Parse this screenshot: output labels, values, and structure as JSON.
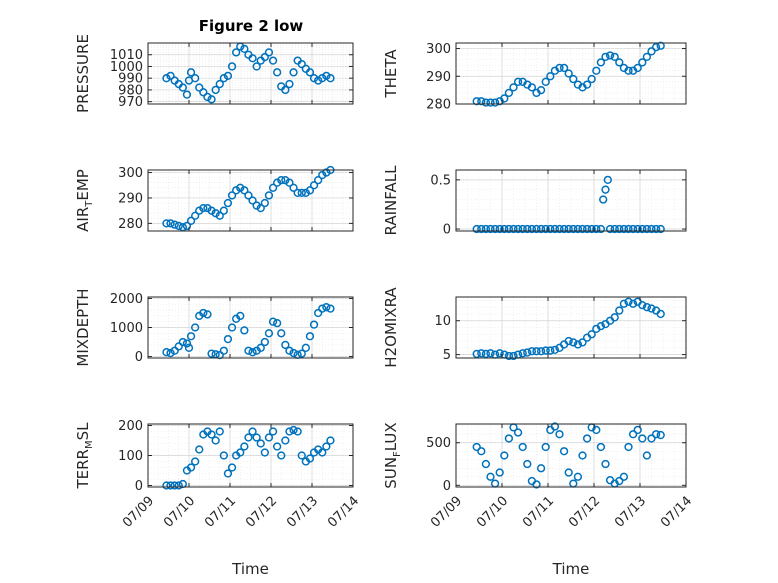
{
  "figure_title": "Figure 2 low",
  "marker_color": "#0072bd",
  "chart_data": [
    {
      "type": "scatter",
      "panel": "PRESSURE",
      "ylabel": "PRESSURE",
      "ylabel_sub": "",
      "ylabel_post": "",
      "ylim": [
        968,
        1020
      ],
      "yticks": [
        970,
        980,
        990,
        1000,
        1010
      ],
      "ytick_labels": [
        "970",
        "980",
        "990",
        "1000",
        "1010"
      ],
      "xlabel": "",
      "xtick_labels": [],
      "x": [
        0.45,
        0.55,
        0.65,
        0.75,
        0.85,
        0.95,
        1.0,
        1.05,
        1.15,
        1.25,
        1.35,
        1.45,
        1.55,
        1.65,
        1.75,
        1.85,
        1.95,
        2.05,
        2.15,
        2.25,
        2.35,
        2.45,
        2.55,
        2.65,
        2.75,
        2.85,
        2.95,
        3.05,
        3.15,
        3.25,
        3.35,
        3.45,
        3.55,
        3.65,
        3.75,
        3.85,
        3.95,
        4.05,
        4.15,
        4.25,
        4.35,
        4.45
      ],
      "y": [
        990,
        992,
        988,
        985,
        982,
        976,
        988,
        995,
        990,
        982,
        978,
        974,
        972,
        980,
        985,
        990,
        992,
        1000,
        1012,
        1017,
        1015,
        1010,
        1007,
        1000,
        1005,
        1008,
        1012,
        1005,
        995,
        983,
        980,
        985,
        995,
        1005,
        1002,
        998,
        995,
        990,
        988,
        990,
        992,
        990
      ]
    },
    {
      "type": "scatter",
      "panel": "THETA",
      "ylabel": "THETA",
      "ylabel_sub": "",
      "ylabel_post": "",
      "ylim": [
        280,
        302
      ],
      "yticks": [
        280,
        290,
        300
      ],
      "ytick_labels": [
        "280",
        "290",
        "300"
      ],
      "xlabel": "",
      "xtick_labels": [],
      "x": [
        0.45,
        0.55,
        0.65,
        0.75,
        0.85,
        0.95,
        1.05,
        1.15,
        1.25,
        1.35,
        1.45,
        1.55,
        1.65,
        1.75,
        1.85,
        1.95,
        2.05,
        2.15,
        2.25,
        2.35,
        2.45,
        2.55,
        2.65,
        2.75,
        2.85,
        2.95,
        3.05,
        3.15,
        3.25,
        3.35,
        3.45,
        3.55,
        3.65,
        3.75,
        3.85,
        3.95,
        4.05,
        4.15,
        4.25,
        4.35,
        4.45
      ],
      "y": [
        281,
        281,
        280.5,
        280.5,
        280.5,
        281,
        282,
        284,
        286,
        288,
        288,
        287,
        286,
        284,
        285,
        288,
        290,
        292,
        293,
        293,
        291,
        289,
        287,
        286,
        287,
        289,
        292,
        295,
        297,
        297.5,
        297,
        295,
        293,
        292,
        292,
        293,
        295,
        297,
        299,
        300.5,
        301
      ]
    },
    {
      "type": "scatter",
      "panel": "AIR_T_EMP",
      "ylabel": "AIR",
      "ylabel_sub": "T",
      "ylabel_post": "EMP",
      "ylim": [
        277,
        301
      ],
      "yticks": [
        280,
        290,
        300
      ],
      "ytick_labels": [
        "280",
        "290",
        "300"
      ],
      "xlabel": "",
      "xtick_labels": [],
      "x": [
        0.45,
        0.55,
        0.65,
        0.75,
        0.85,
        0.95,
        1.05,
        1.15,
        1.25,
        1.35,
        1.45,
        1.55,
        1.65,
        1.75,
        1.85,
        1.95,
        2.05,
        2.15,
        2.25,
        2.35,
        2.45,
        2.55,
        2.65,
        2.75,
        2.85,
        2.95,
        3.05,
        3.15,
        3.25,
        3.35,
        3.45,
        3.55,
        3.65,
        3.75,
        3.85,
        3.95,
        4.05,
        4.15,
        4.25,
        4.35,
        4.45
      ],
      "y": [
        280,
        280,
        279.5,
        279,
        278.5,
        279,
        281,
        283,
        285,
        286,
        286,
        285,
        284,
        283,
        285,
        288,
        291,
        293,
        294,
        293,
        291,
        289,
        287,
        286,
        288,
        291,
        294,
        296,
        297,
        297,
        296,
        294,
        292,
        292,
        292,
        293,
        295,
        297,
        299,
        300,
        301
      ]
    },
    {
      "type": "scatter",
      "panel": "RAINFALL",
      "ylabel": "RAINFALL",
      "ylabel_sub": "",
      "ylabel_post": "",
      "ylim": [
        -0.02,
        0.6
      ],
      "yticks": [
        0,
        0.5
      ],
      "ytick_labels": [
        "0",
        "0.5"
      ],
      "xlabel": "",
      "xtick_labels": [],
      "x": [
        0.45,
        0.55,
        0.65,
        0.75,
        0.85,
        0.95,
        1.05,
        1.15,
        1.25,
        1.35,
        1.45,
        1.55,
        1.65,
        1.75,
        1.85,
        1.95,
        2.05,
        2.15,
        2.25,
        2.35,
        2.45,
        2.55,
        2.65,
        2.75,
        2.85,
        2.95,
        3.05,
        3.15,
        3.2,
        3.25,
        3.3,
        3.35,
        3.45,
        3.55,
        3.65,
        3.75,
        3.85,
        3.95,
        4.05,
        4.15,
        4.25,
        4.35,
        4.45
      ],
      "y": [
        0,
        0,
        0,
        0,
        0,
        0,
        0,
        0,
        0,
        0,
        0,
        0,
        0,
        0,
        0,
        0,
        0,
        0,
        0,
        0,
        0,
        0,
        0,
        0,
        0,
        0,
        0,
        0,
        0.3,
        0.4,
        0.5,
        0,
        0,
        0,
        0,
        0,
        0,
        0,
        0,
        0,
        0,
        0,
        0
      ]
    },
    {
      "type": "scatter",
      "panel": "MIXDEPTH",
      "ylabel": "MIXDEPTH",
      "ylabel_sub": "",
      "ylabel_post": "",
      "ylim": [
        -50,
        2050
      ],
      "yticks": [
        0,
        1000,
        2000
      ],
      "ytick_labels": [
        "0",
        "1000",
        "2000"
      ],
      "xlabel": "",
      "xtick_labels": [],
      "x": [
        0.45,
        0.55,
        0.65,
        0.75,
        0.85,
        0.95,
        1.0,
        1.05,
        1.15,
        1.25,
        1.35,
        1.45,
        1.55,
        1.65,
        1.75,
        1.85,
        1.95,
        2.05,
        2.15,
        2.25,
        2.35,
        2.45,
        2.55,
        2.65,
        2.75,
        2.85,
        2.95,
        3.05,
        3.15,
        3.25,
        3.35,
        3.45,
        3.55,
        3.65,
        3.75,
        3.85,
        3.95,
        4.05,
        4.15,
        4.25,
        4.35,
        4.45
      ],
      "y": [
        150,
        120,
        200,
        350,
        500,
        450,
        300,
        700,
        1000,
        1400,
        1500,
        1450,
        100,
        80,
        50,
        200,
        600,
        1000,
        1300,
        1400,
        900,
        200,
        150,
        200,
        300,
        500,
        800,
        1200,
        1150,
        800,
        400,
        200,
        120,
        60,
        100,
        300,
        700,
        1100,
        1500,
        1650,
        1700,
        1650
      ]
    },
    {
      "type": "scatter",
      "panel": "H2OMIXRA",
      "ylabel": "H2OMIXRA",
      "ylabel_sub": "",
      "ylabel_post": "",
      "ylim": [
        4.5,
        13.5
      ],
      "yticks": [
        5,
        10
      ],
      "ytick_labels": [
        "5",
        "10"
      ],
      "xlabel": "",
      "xtick_labels": [],
      "x": [
        0.45,
        0.55,
        0.65,
        0.75,
        0.85,
        0.95,
        1.05,
        1.15,
        1.25,
        1.35,
        1.45,
        1.55,
        1.65,
        1.75,
        1.85,
        1.95,
        2.05,
        2.15,
        2.25,
        2.35,
        2.45,
        2.55,
        2.65,
        2.75,
        2.85,
        2.95,
        3.05,
        3.15,
        3.25,
        3.35,
        3.45,
        3.55,
        3.65,
        3.75,
        3.85,
        3.95,
        4.05,
        4.15,
        4.25,
        4.35,
        4.45
      ],
      "y": [
        5.1,
        5.2,
        5.1,
        5.2,
        5.0,
        5.2,
        5.0,
        4.8,
        4.8,
        5.0,
        5.2,
        5.3,
        5.5,
        5.5,
        5.5,
        5.6,
        5.6,
        5.7,
        6.0,
        6.5,
        7.0,
        6.8,
        6.5,
        6.8,
        7.5,
        8.0,
        8.8,
        9.2,
        9.5,
        10.0,
        10.5,
        11.5,
        12.5,
        12.8,
        12.5,
        12.8,
        12.3,
        12.0,
        11.8,
        11.5,
        11.0
      ]
    },
    {
      "type": "scatter",
      "panel": "TERR_M_SL",
      "ylabel": "TERR",
      "ylabel_sub": "M",
      "ylabel_post": "SL",
      "ylim": [
        -5,
        205
      ],
      "yticks": [
        0,
        100,
        200
      ],
      "ytick_labels": [
        "0",
        "100",
        "200"
      ],
      "xlabel": "Time",
      "xtick_labels": [
        "07/09",
        "07/10",
        "07/11",
        "07/12",
        "07/13",
        "07/14"
      ],
      "x": [
        0.45,
        0.55,
        0.65,
        0.75,
        0.85,
        0.95,
        1.05,
        1.15,
        1.25,
        1.35,
        1.45,
        1.55,
        1.65,
        1.75,
        1.85,
        1.95,
        2.05,
        2.15,
        2.25,
        2.35,
        2.45,
        2.55,
        2.65,
        2.75,
        2.85,
        2.95,
        3.05,
        3.15,
        3.25,
        3.35,
        3.45,
        3.55,
        3.65,
        3.75,
        3.85,
        3.95,
        4.05,
        4.15,
        4.25,
        4.35,
        4.45
      ],
      "y": [
        0,
        0,
        0,
        0,
        5,
        50,
        60,
        80,
        120,
        170,
        180,
        170,
        150,
        180,
        100,
        40,
        60,
        100,
        110,
        130,
        160,
        180,
        160,
        140,
        110,
        160,
        180,
        130,
        100,
        150,
        180,
        185,
        180,
        100,
        80,
        90,
        110,
        120,
        110,
        130,
        150
      ]
    },
    {
      "type": "scatter",
      "panel": "SUN_F_LUX",
      "ylabel": "SUN",
      "ylabel_sub": "F",
      "ylabel_post": "LUX",
      "ylim": [
        -20,
        720
      ],
      "yticks": [
        0,
        500
      ],
      "ytick_labels": [
        "0",
        "500"
      ],
      "xlabel": "Time",
      "xtick_labels": [
        "07/09",
        "07/10",
        "07/11",
        "07/12",
        "07/13",
        "07/14"
      ],
      "x": [
        0.45,
        0.55,
        0.65,
        0.75,
        0.85,
        0.95,
        1.05,
        1.15,
        1.25,
        1.35,
        1.45,
        1.55,
        1.65,
        1.75,
        1.85,
        1.95,
        2.05,
        2.15,
        2.25,
        2.35,
        2.45,
        2.55,
        2.65,
        2.75,
        2.85,
        2.95,
        3.05,
        3.15,
        3.25,
        3.35,
        3.45,
        3.55,
        3.65,
        3.75,
        3.85,
        3.95,
        4.05,
        4.15,
        4.25,
        4.35,
        4.45
      ],
      "y": [
        450,
        400,
        250,
        100,
        20,
        150,
        350,
        550,
        680,
        620,
        450,
        250,
        50,
        10,
        200,
        450,
        650,
        690,
        600,
        400,
        150,
        20,
        100,
        350,
        550,
        680,
        650,
        450,
        250,
        60,
        20,
        50,
        100,
        450,
        600,
        650,
        550,
        350,
        550,
        600,
        590
      ]
    }
  ]
}
